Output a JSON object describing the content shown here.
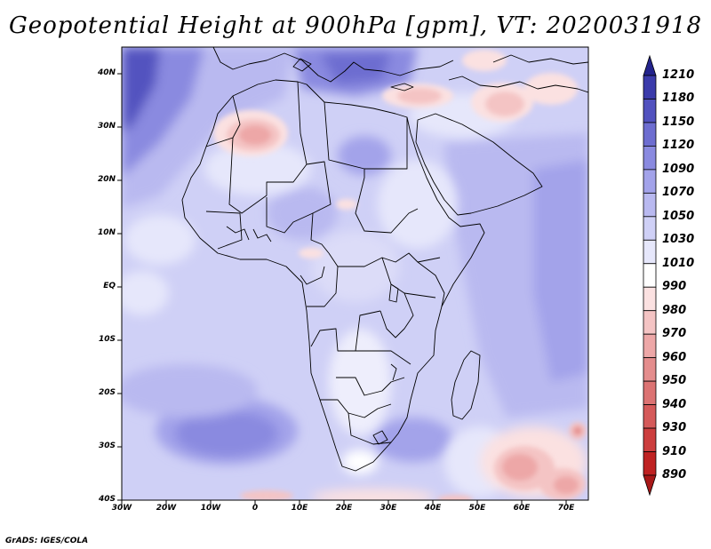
{
  "title": "Geopotential Height at 900hPa [gpm], VT: 2020031918",
  "credit": "GrADS: IGES/COLA",
  "map": {
    "latitude_labels": [
      "40N",
      "30N",
      "20N",
      "10N",
      "EQ",
      "10S",
      "20S",
      "30S",
      "40S"
    ],
    "longitude_labels": [
      "30W",
      "20W",
      "10W",
      "0",
      "10E",
      "20E",
      "30E",
      "40E",
      "50E",
      "60E",
      "70E"
    ]
  },
  "colorbar": {
    "levels": [
      "1210",
      "1180",
      "1150",
      "1120",
      "1090",
      "1070",
      "1050",
      "1030",
      "1010",
      "990",
      "980",
      "970",
      "960",
      "950",
      "940",
      "930",
      "910",
      "890"
    ],
    "colors": [
      "#23238c",
      "#3b3bab",
      "#5252bf",
      "#6d6dd0",
      "#8a8ae0",
      "#a3a3ea",
      "#b9b9f0",
      "#cfd0f6",
      "#e6e7fb",
      "#ffffff",
      "#fbe1e1",
      "#f4c4c4",
      "#eda7a7",
      "#e48d8d",
      "#dc7373",
      "#d55a5a",
      "#cc3e3e",
      "#bf2222",
      "#a81818"
    ]
  }
}
